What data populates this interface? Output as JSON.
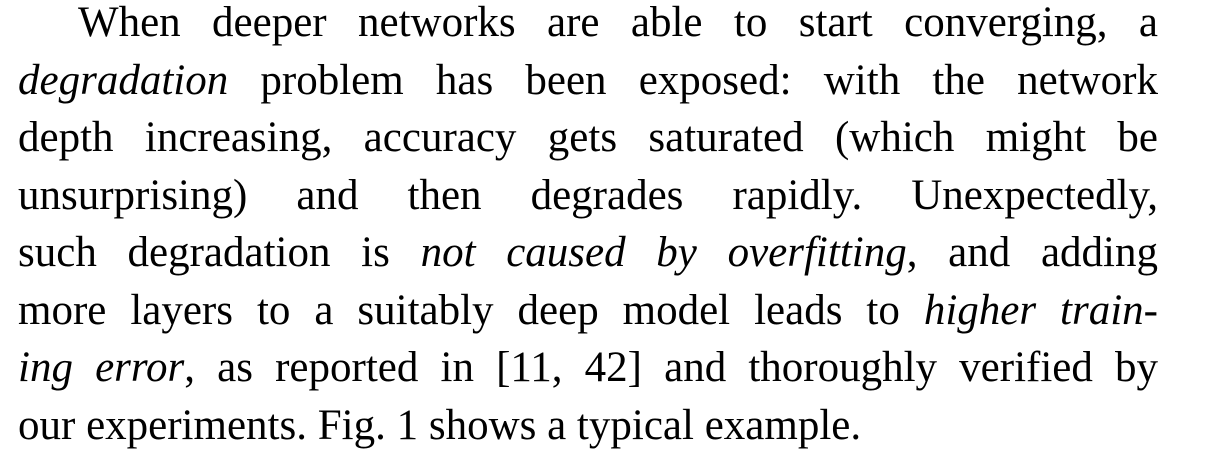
{
  "paragraph": {
    "lines": [
      [
        {
          "text": "When deeper networks are able to start converging, a",
          "italic": false
        }
      ],
      [
        {
          "text": "degradation",
          "italic": true
        },
        {
          "text": " problem has been exposed:  with the network",
          "italic": false
        }
      ],
      [
        {
          "text": "depth increasing, accuracy gets saturated (which might be",
          "italic": false
        }
      ],
      [
        {
          "text": "unsurprising) and then degrades rapidly.  Unexpectedly,",
          "italic": false
        }
      ],
      [
        {
          "text": "such degradation is ",
          "italic": false
        },
        {
          "text": "not caused by overfitting",
          "italic": true
        },
        {
          "text": ", and adding",
          "italic": false
        }
      ],
      [
        {
          "text": "more layers to a suitably deep model leads to ",
          "italic": false
        },
        {
          "text": "higher train-",
          "italic": true
        }
      ],
      [
        {
          "text": "ing error",
          "italic": true
        },
        {
          "text": ", as reported in [11, 42] and thoroughly verified by",
          "italic": false
        }
      ],
      [
        {
          "text": "our experiments. Fig. 1 shows a typical example.",
          "italic": false
        }
      ]
    ]
  }
}
